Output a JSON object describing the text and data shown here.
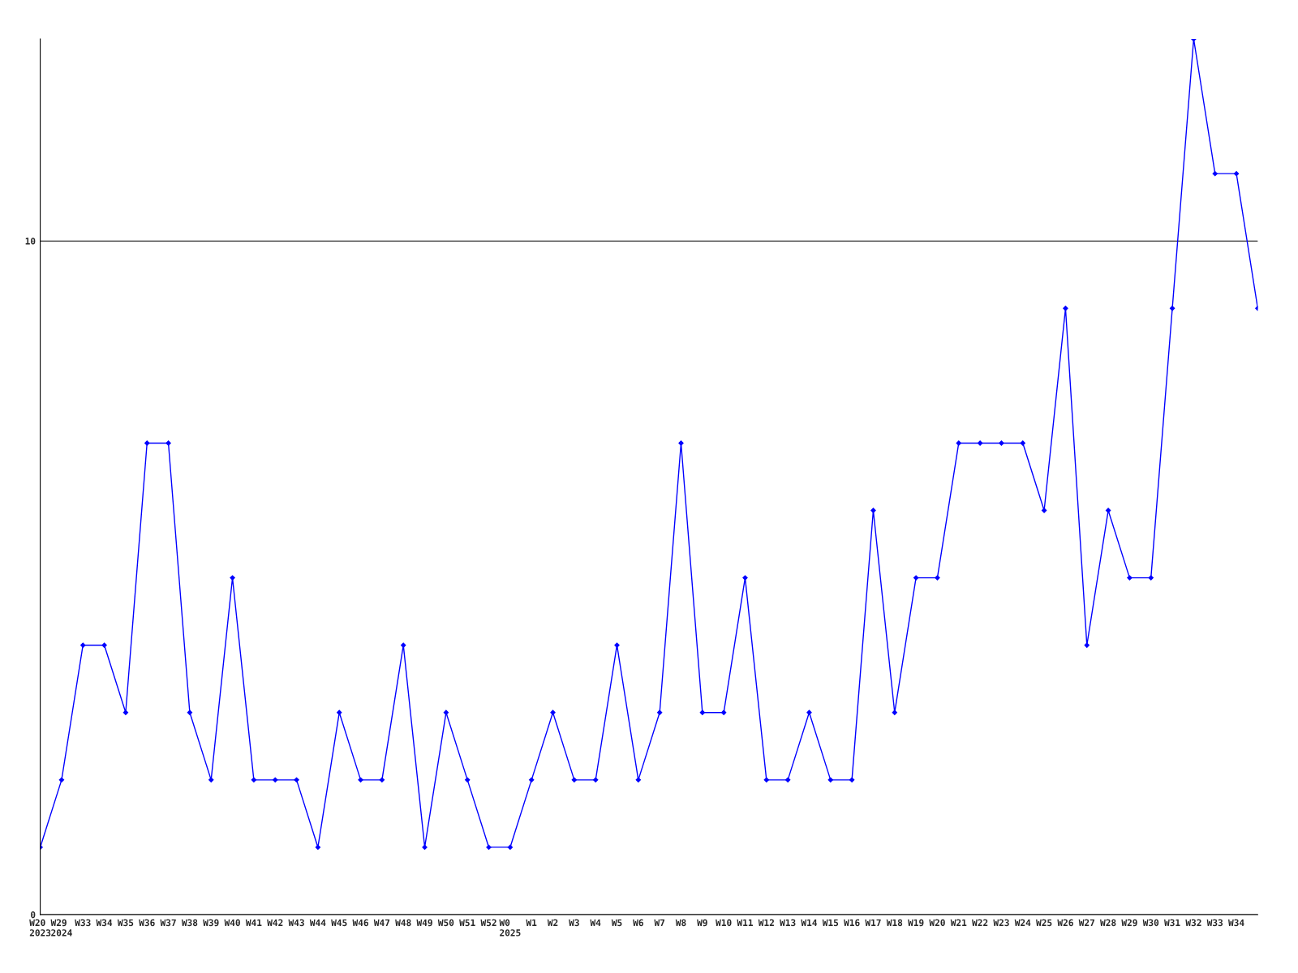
{
  "chart_data": {
    "type": "line",
    "categories": [
      "W20\n2023",
      "W29\n2024",
      "W33",
      "W34",
      "W35",
      "W36",
      "W37",
      "W38",
      "W39",
      "W40",
      "W41",
      "W42",
      "W43",
      "W44",
      "W45",
      "W46",
      "W47",
      "W48",
      "W49",
      "W50",
      "W51",
      "W52",
      "W0\n2025",
      "W1",
      "W2",
      "W3",
      "W4",
      "W5",
      "W6",
      "W7",
      "W8",
      "W9",
      "W10",
      "W11",
      "W12",
      "W13",
      "W14",
      "W15",
      "W16",
      "W17",
      "W18",
      "W19",
      "W20",
      "W21",
      "W22",
      "W23",
      "W24",
      "W25",
      "W26",
      "W27",
      "W28",
      "W29",
      "W30",
      "W31",
      "W32",
      "W33",
      "W34",
      null
    ],
    "series": [
      {
        "color": "#0000ff",
        "values": [
          1,
          2,
          4,
          4,
          3,
          7,
          7,
          3,
          2,
          5,
          2,
          2,
          2,
          1,
          3,
          2,
          2,
          4,
          1,
          3,
          2,
          1,
          1,
          2,
          3,
          2,
          2,
          4,
          2,
          3,
          7,
          3,
          3,
          5,
          2,
          2,
          3,
          2,
          2,
          6,
          3,
          5,
          5,
          7,
          7,
          7,
          7,
          6,
          9,
          4,
          6,
          5,
          5,
          9,
          13,
          11,
          11,
          9
        ]
      }
    ],
    "ylim": [
      0,
      13
    ],
    "yticks": [
      0,
      10
    ],
    "grid": "y",
    "marker": "diamond",
    "line_style": "solid"
  }
}
